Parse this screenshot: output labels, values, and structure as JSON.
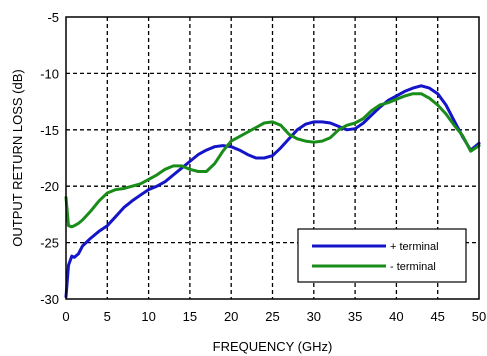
{
  "chart_data": {
    "type": "line",
    "title": "",
    "xlabel": "FREQUENCY (GHz)",
    "ylabel": "OUTPUT RETURN LOSS  (dB)",
    "xlim": [
      0,
      50
    ],
    "ylim": [
      -30,
      -5
    ],
    "xticks": [
      0,
      5,
      10,
      15,
      20,
      25,
      30,
      35,
      40,
      45,
      50
    ],
    "yticks": [
      -30,
      -25,
      -20,
      -15,
      -10,
      -5
    ],
    "grid": true,
    "legend_position": "bottom-right",
    "series": [
      {
        "name": "+ terminal",
        "color": "#1414c8",
        "x": [
          0,
          0.3,
          0.7,
          1.0,
          1.5,
          2,
          3,
          4,
          5,
          6,
          7,
          8,
          9,
          10,
          11,
          12,
          13,
          14,
          15,
          16,
          17,
          18,
          19,
          20,
          21,
          22,
          23,
          24,
          25,
          26,
          27,
          28,
          29,
          30,
          31,
          32,
          33,
          34,
          35,
          36,
          37,
          38,
          39,
          40,
          41,
          42,
          43,
          44,
          45,
          46,
          47,
          48,
          49,
          50
        ],
        "values": [
          -29.8,
          -27.0,
          -26.2,
          -26.3,
          -26.0,
          -25.3,
          -24.6,
          -24.0,
          -23.5,
          -22.7,
          -21.9,
          -21.3,
          -20.8,
          -20.3,
          -20.0,
          -19.6,
          -19.0,
          -18.4,
          -17.8,
          -17.2,
          -16.8,
          -16.5,
          -16.4,
          -16.5,
          -16.8,
          -17.2,
          -17.5,
          -17.5,
          -17.3,
          -16.6,
          -15.8,
          -15.0,
          -14.5,
          -14.3,
          -14.3,
          -14.4,
          -14.7,
          -15.0,
          -14.9,
          -14.4,
          -13.7,
          -13.0,
          -12.4,
          -12.0,
          -11.6,
          -11.3,
          -11.1,
          -11.3,
          -11.8,
          -12.8,
          -14.2,
          -15.6,
          -16.8,
          -16.2
        ]
      },
      {
        "name": "- terminal",
        "color": "#1a8c1a",
        "x": [
          0,
          0.3,
          0.7,
          1.0,
          1.5,
          2,
          3,
          4,
          5,
          6,
          7,
          8,
          9,
          10,
          11,
          12,
          13,
          14,
          15,
          16,
          17,
          18,
          19,
          20,
          21,
          22,
          23,
          24,
          25,
          26,
          27,
          28,
          29,
          30,
          31,
          32,
          33,
          34,
          35,
          36,
          37,
          38,
          39,
          40,
          41,
          42,
          43,
          44,
          45,
          46,
          47,
          48,
          49,
          50
        ],
        "values": [
          -21.0,
          -23.5,
          -23.6,
          -23.5,
          -23.3,
          -23.0,
          -22.2,
          -21.3,
          -20.6,
          -20.3,
          -20.2,
          -20.0,
          -19.8,
          -19.4,
          -19.0,
          -18.5,
          -18.2,
          -18.2,
          -18.5,
          -18.7,
          -18.7,
          -18.0,
          -16.9,
          -16.0,
          -15.6,
          -15.2,
          -14.8,
          -14.4,
          -14.3,
          -14.6,
          -15.4,
          -15.8,
          -16.0,
          -16.1,
          -16.0,
          -15.7,
          -15.0,
          -14.6,
          -14.4,
          -14.0,
          -13.3,
          -12.8,
          -12.6,
          -12.3,
          -12.0,
          -11.8,
          -11.8,
          -12.2,
          -12.8,
          -13.6,
          -14.6,
          -15.5,
          -16.9,
          -16.4
        ]
      }
    ]
  }
}
